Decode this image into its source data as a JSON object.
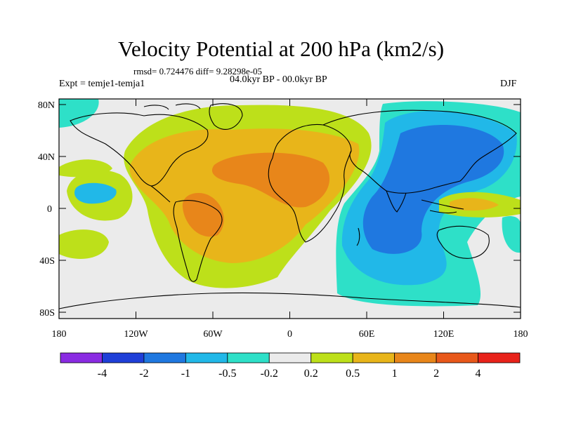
{
  "title": "Velocity Potential at 200 hPa (km2/s)",
  "stats_line": "rmsd= 0.724476 diff= 9.28298e-05",
  "left_subtitle": "Expt = temje1-temja1",
  "center_subtitle": "04.0kyr BP - 00.0kyr BP",
  "right_subtitle": "DJF",
  "lat_ticks": [
    "80N",
    "40N",
    "0",
    "40S",
    "80S"
  ],
  "lon_ticks": [
    "180",
    "120W",
    "60W",
    "0",
    "60E",
    "120E",
    "180"
  ],
  "colorbar": {
    "labels": [
      "-4",
      "-2",
      "-1",
      "-0.5",
      "-0.2",
      "0.2",
      "0.5",
      "1",
      "2",
      "4"
    ],
    "colors": [
      "#8a2be2",
      "#1f3fd8",
      "#1f78e0",
      "#21b8e8",
      "#2ee0c8",
      "#ebebeb",
      "#bde01a",
      "#e8b51a",
      "#e8861a",
      "#e8581a",
      "#e8221a"
    ]
  },
  "map_fill_colors": {
    "land_outline": "#000000",
    "background": "#ebebeb"
  }
}
